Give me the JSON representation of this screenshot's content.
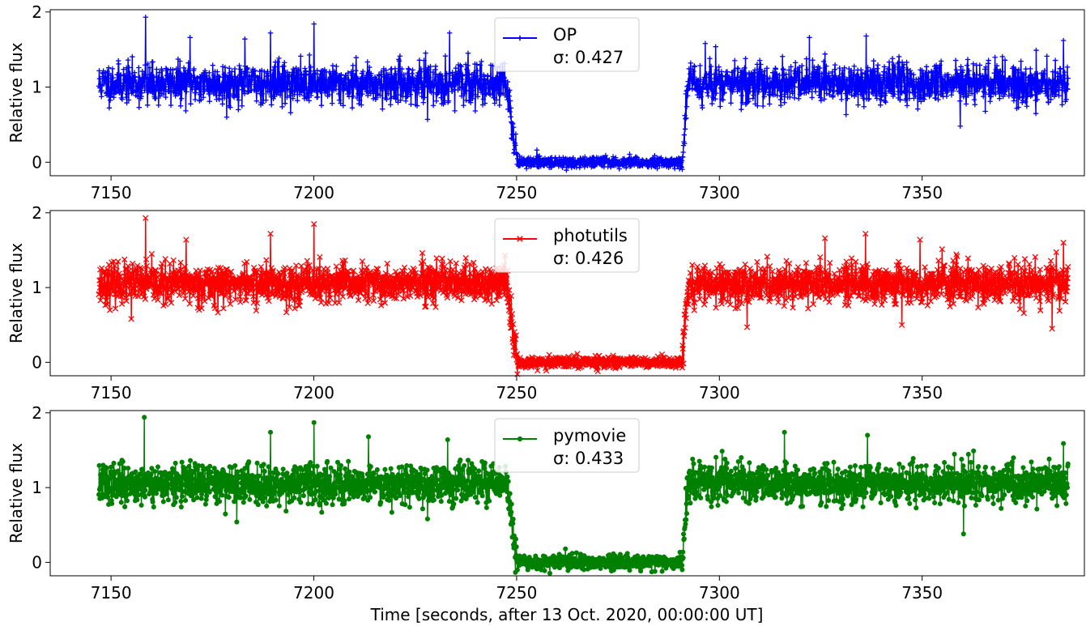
{
  "xlabel": "Time [seconds, after 13 Oct. 2020, 00:00:00 UT]",
  "chart_data": [
    {
      "type": "line",
      "ylabel": "Relative flux",
      "xlim": [
        7135,
        7390
      ],
      "ylim": [
        -0.18,
        2.03
      ],
      "x_ticks": [
        7150,
        7200,
        7250,
        7300,
        7350
      ],
      "y_ticks": [
        0,
        1,
        2
      ],
      "legend_placement": "top-center",
      "series": [
        {
          "name": "OP",
          "annotation": "σ: 0.427",
          "color": "#0000ff",
          "marker": "plus",
          "seed": 11,
          "x_start": 7147,
          "x_end": 7386,
          "drop_start": 7247.5,
          "drop_end": 7250.2,
          "rise_start": 7290.8,
          "rise_end": 7292.2,
          "out_level": 1.05,
          "in_level": 0.0,
          "noise_out": 0.13,
          "noise_in": 0.035,
          "spikes": [
            [
              7158.5,
              1.93
            ],
            [
              7189.3,
              1.72
            ],
            [
              7200.0,
              1.84
            ],
            [
              7233.5,
              1.72
            ],
            [
              7169.5,
              1.66
            ],
            [
              7336.2,
              1.68
            ],
            [
              7322.2,
              1.66
            ],
            [
              7183.0,
              1.64
            ],
            [
              7296.5,
              1.58
            ],
            [
              7384.8,
              1.62
            ],
            [
              7228.0,
              0.57
            ],
            [
              7359.4,
              0.48
            ],
            [
              7178.5,
              0.6
            ],
            [
              7159.0,
              0.76
            ]
          ]
        },
        {
          "name": "photutils",
          "annotation": "σ: 0.426",
          "color": "#ff0000",
          "marker": "x",
          "seed": 23,
          "x_start": 7147,
          "x_end": 7386,
          "drop_start": 7247.5,
          "drop_end": 7250.2,
          "rise_start": 7290.8,
          "rise_end": 7292.2,
          "out_level": 1.05,
          "in_level": 0.0,
          "noise_out": 0.13,
          "noise_in": 0.035,
          "spikes": [
            [
              7158.5,
              1.93
            ],
            [
              7200.0,
              1.85
            ],
            [
              7189.3,
              1.72
            ],
            [
              7168.5,
              1.64
            ],
            [
              7336.0,
              1.72
            ],
            [
              7349.5,
              1.64
            ],
            [
              7326.0,
              1.66
            ],
            [
              7384.8,
              1.6
            ],
            [
              7258.0,
              0.1
            ],
            [
              7270.0,
              -0.12
            ],
            [
              7306.8,
              0.47
            ],
            [
              7345.0,
              0.5
            ],
            [
              7382.0,
              0.45
            ],
            [
              7155.0,
              0.58
            ]
          ]
        },
        {
          "name": "pymovie",
          "annotation": "σ: 0.433",
          "color": "#008000",
          "marker": "dot",
          "seed": 37,
          "x_start": 7147,
          "x_end": 7386,
          "drop_start": 7247.5,
          "drop_end": 7250.2,
          "rise_start": 7290.8,
          "rise_end": 7292.2,
          "out_level": 1.05,
          "in_level": 0.0,
          "noise_out": 0.13,
          "noise_in": 0.045,
          "spikes": [
            [
              7158.2,
              1.94
            ],
            [
              7200.0,
              1.87
            ],
            [
              7189.3,
              1.74
            ],
            [
              7316.0,
              1.74
            ],
            [
              7336.5,
              1.7
            ],
            [
              7213.5,
              1.68
            ],
            [
              7384.8,
              1.59
            ],
            [
              7233.0,
              1.64
            ],
            [
              7360.2,
              0.38
            ],
            [
              7262.0,
              0.18
            ],
            [
              7181.0,
              0.54
            ],
            [
              7228.0,
              0.58
            ]
          ]
        }
      ]
    }
  ]
}
